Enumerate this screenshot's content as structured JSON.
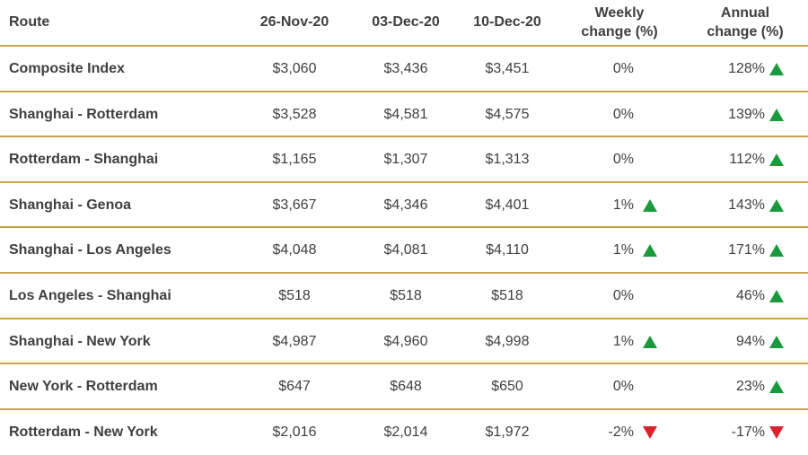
{
  "header": {
    "route": "Route",
    "date1": "26-Nov-20",
    "date2": "03-Dec-20",
    "date3": "10-Dec-20",
    "weekly_line1": "Weekly",
    "weekly_line2": "change (%)",
    "annual_line1": "Annual",
    "annual_line2": "change (%)"
  },
  "colors": {
    "up": "#1a9a3c",
    "down": "#d9232e",
    "rule": "#c9a44a"
  },
  "rows": [
    {
      "route": "Composite Index",
      "d1": "$3,060",
      "d2": "$3,436",
      "d3": "$3,451",
      "weekly": "0%",
      "weekly_dir": "none",
      "annual": "128%",
      "annual_dir": "up"
    },
    {
      "route": "Shanghai - Rotterdam",
      "d1": "$3,528",
      "d2": "$4,581",
      "d3": "$4,575",
      "weekly": "0%",
      "weekly_dir": "none",
      "annual": "139%",
      "annual_dir": "up"
    },
    {
      "route": "Rotterdam - Shanghai",
      "d1": "$1,165",
      "d2": "$1,307",
      "d3": "$1,313",
      "weekly": "0%",
      "weekly_dir": "none",
      "annual": "112%",
      "annual_dir": "up"
    },
    {
      "route": "Shanghai - Genoa",
      "d1": "$3,667",
      "d2": "$4,346",
      "d3": "$4,401",
      "weekly": "1%",
      "weekly_dir": "up",
      "annual": "143%",
      "annual_dir": "up"
    },
    {
      "route": "Shanghai - Los Angeles",
      "d1": "$4,048",
      "d2": "$4,081",
      "d3": "$4,110",
      "weekly": "1%",
      "weekly_dir": "up",
      "annual": "171%",
      "annual_dir": "up"
    },
    {
      "route": "Los Angeles - Shanghai",
      "d1": "$518",
      "d2": "$518",
      "d3": "$518",
      "weekly": "0%",
      "weekly_dir": "none",
      "annual": "46%",
      "annual_dir": "up"
    },
    {
      "route": "Shanghai - New York",
      "d1": "$4,987",
      "d2": "$4,960",
      "d3": "$4,998",
      "weekly": "1%",
      "weekly_dir": "up",
      "annual": "94%",
      "annual_dir": "up"
    },
    {
      "route": "New York - Rotterdam",
      "d1": "$647",
      "d2": "$648",
      "d3": "$650",
      "weekly": "0%",
      "weekly_dir": "none",
      "annual": "23%",
      "annual_dir": "up"
    },
    {
      "route": "Rotterdam - New York",
      "d1": "$2,016",
      "d2": "$2,014",
      "d3": "$1,972",
      "weekly": "-2%",
      "weekly_dir": "down",
      "annual": "-17%",
      "annual_dir": "down"
    }
  ]
}
